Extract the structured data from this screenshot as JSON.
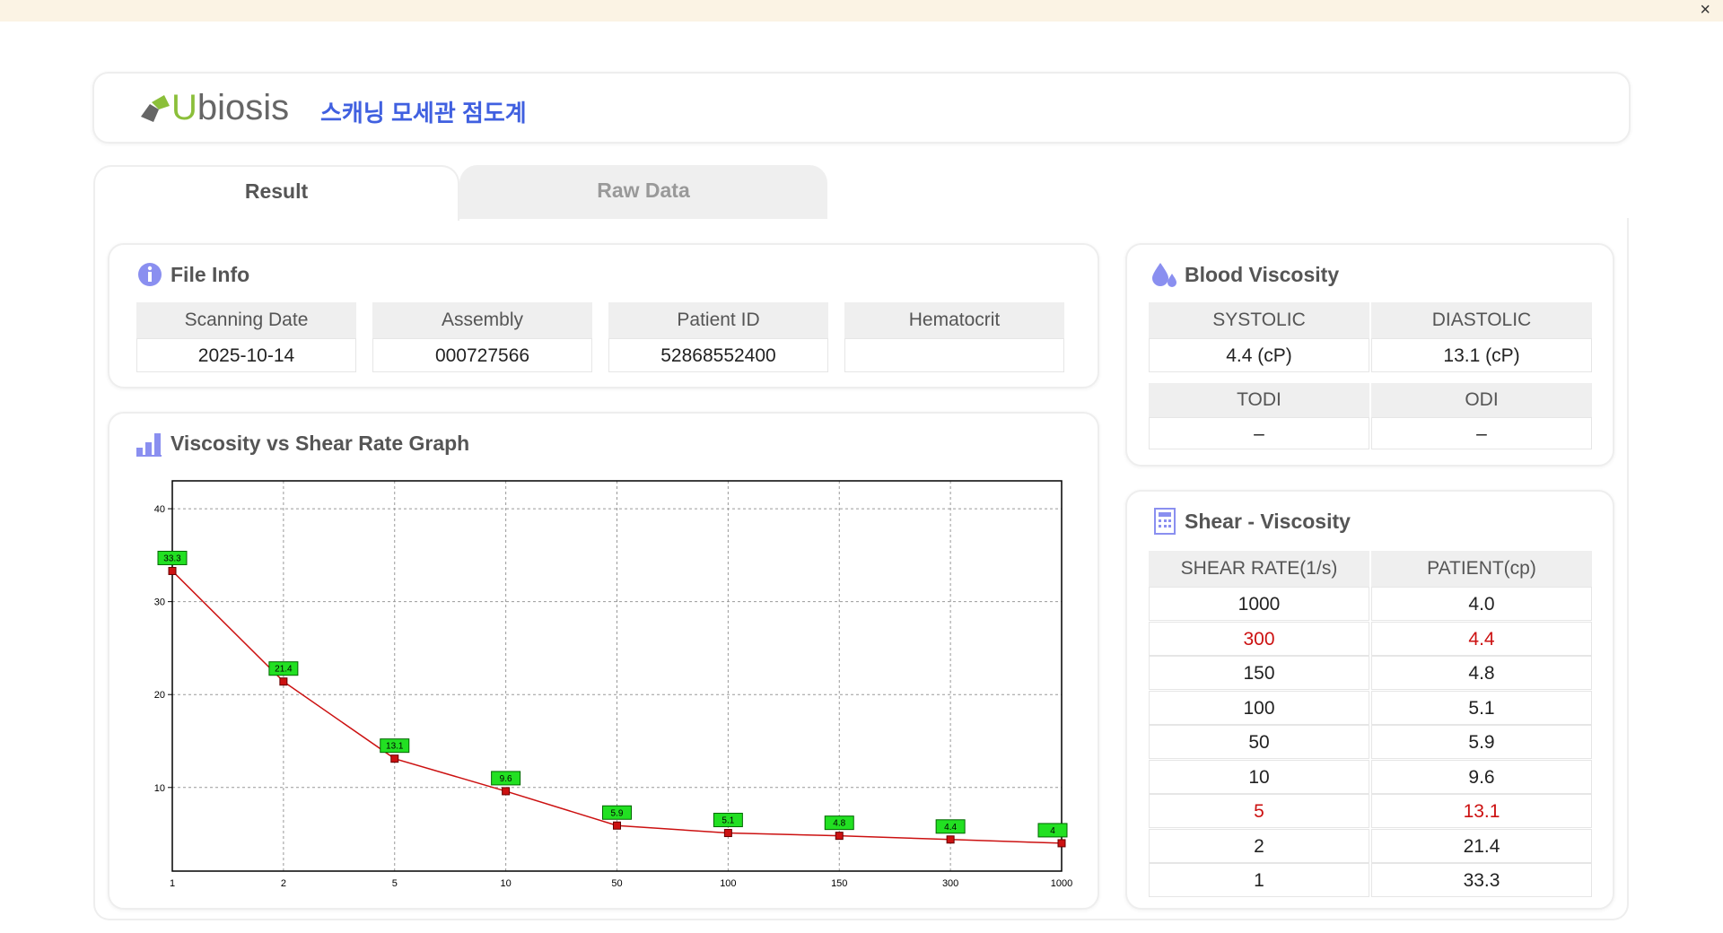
{
  "window": {
    "close_label": "×"
  },
  "header": {
    "logo_initial": "U",
    "logo_rest": "biosis",
    "title": "스캐닝 모세관 점도계"
  },
  "tabs": [
    "Result",
    "Raw Data"
  ],
  "file_info": {
    "title": "File Info",
    "headers": [
      "Scanning Date",
      "Assembly",
      "Patient ID",
      "Hematocrit"
    ],
    "values": [
      "2025-10-14",
      "000727566",
      "52868552400"
    ]
  },
  "blood_viscosity": {
    "title": "Blood Viscosity",
    "headers": [
      "SYSTOLIC",
      "DIASTOLIC"
    ],
    "values": [
      "4.4 (cP)",
      "13.1 (cP)"
    ],
    "headers2": [
      "TODI",
      "ODI"
    ],
    "values2": [
      "–",
      "–"
    ]
  },
  "shear_viscosity": {
    "title": "Shear - Viscosity",
    "headers": [
      "SHEAR RATE(1/s)",
      "PATIENT(cp)"
    ],
    "rows": [
      [
        "1000",
        "4.0"
      ],
      [
        "300",
        "4.4"
      ],
      [
        "150",
        "4.8"
      ],
      [
        "100",
        "5.1"
      ],
      [
        "50",
        "5.9"
      ],
      [
        "10",
        "9.6"
      ],
      [
        "5",
        "13.1"
      ],
      [
        "2",
        "21.4"
      ],
      [
        "1",
        "33.3"
      ]
    ],
    "highlighted_rows": [
      1,
      6
    ],
    "highlight_color": "#cc1111"
  },
  "chart_data": {
    "type": "line",
    "title": "Viscosity vs Shear Rate Graph",
    "categories": [
      "1",
      "2",
      "5",
      "10",
      "50",
      "100",
      "150",
      "300",
      "1000"
    ],
    "values": [
      33.3,
      21.4,
      13.1,
      9.6,
      5.9,
      5.1,
      4.8,
      4.4,
      4
    ],
    "color": "#cc1111",
    "label_color": "#22e022",
    "ylim": [
      1,
      43
    ],
    "yticks": [
      10,
      20,
      30,
      40
    ],
    "grid": true
  }
}
